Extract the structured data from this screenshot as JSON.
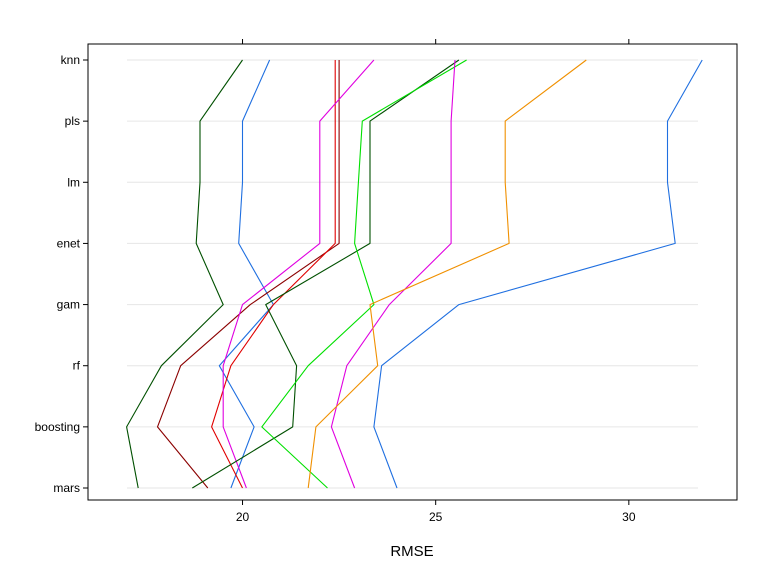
{
  "chart_data": {
    "type": "line",
    "xlabel": "RMSE",
    "xlim": [
      16.0,
      32.8
    ],
    "x_ticks": [
      20,
      25,
      30
    ],
    "x_tick_labels": [
      "20",
      "25",
      "30"
    ],
    "categories": [
      "knn",
      "pls",
      "lm",
      "enet",
      "gam",
      "rf",
      "boosting",
      "mars"
    ],
    "grid": true,
    "legend": "none",
    "series": [
      {
        "color": "#005000",
        "values": [
          20.0,
          18.9,
          18.9,
          18.8,
          19.5,
          17.9,
          17.0,
          17.3
        ]
      },
      {
        "color": "#1f6fe0",
        "values": [
          20.7,
          20.0,
          20.0,
          19.9,
          20.8,
          19.4,
          20.3,
          19.7
        ]
      },
      {
        "color": "#8b0000",
        "values": [
          22.5,
          22.5,
          22.5,
          22.5,
          20.2,
          18.4,
          17.8,
          19.1
        ]
      },
      {
        "color": "#e00000",
        "values": [
          22.4,
          22.4,
          22.4,
          22.4,
          20.8,
          19.7,
          19.2,
          20.0
        ]
      },
      {
        "color": "#e000e0",
        "values": [
          23.4,
          22.0,
          22.0,
          22.0,
          20.0,
          19.5,
          19.5,
          20.1
        ]
      },
      {
        "color": "#005000",
        "values": [
          25.6,
          23.3,
          23.3,
          23.3,
          20.6,
          21.4,
          21.3,
          18.7
        ]
      },
      {
        "color": "#00e000",
        "values": [
          25.8,
          23.1,
          23.0,
          22.9,
          23.4,
          21.7,
          20.5,
          22.2
        ]
      },
      {
        "color": "#e000e0",
        "values": [
          25.5,
          25.4,
          25.4,
          25.4,
          23.8,
          22.7,
          22.3,
          22.9
        ]
      },
      {
        "color": "#f09000",
        "values": [
          28.9,
          26.8,
          26.8,
          26.9,
          23.3,
          23.5,
          21.9,
          21.7
        ]
      },
      {
        "color": "#1f6fe0",
        "values": [
          31.9,
          31.0,
          31.0,
          31.2,
          25.6,
          23.6,
          23.4,
          24.0
        ]
      }
    ]
  }
}
